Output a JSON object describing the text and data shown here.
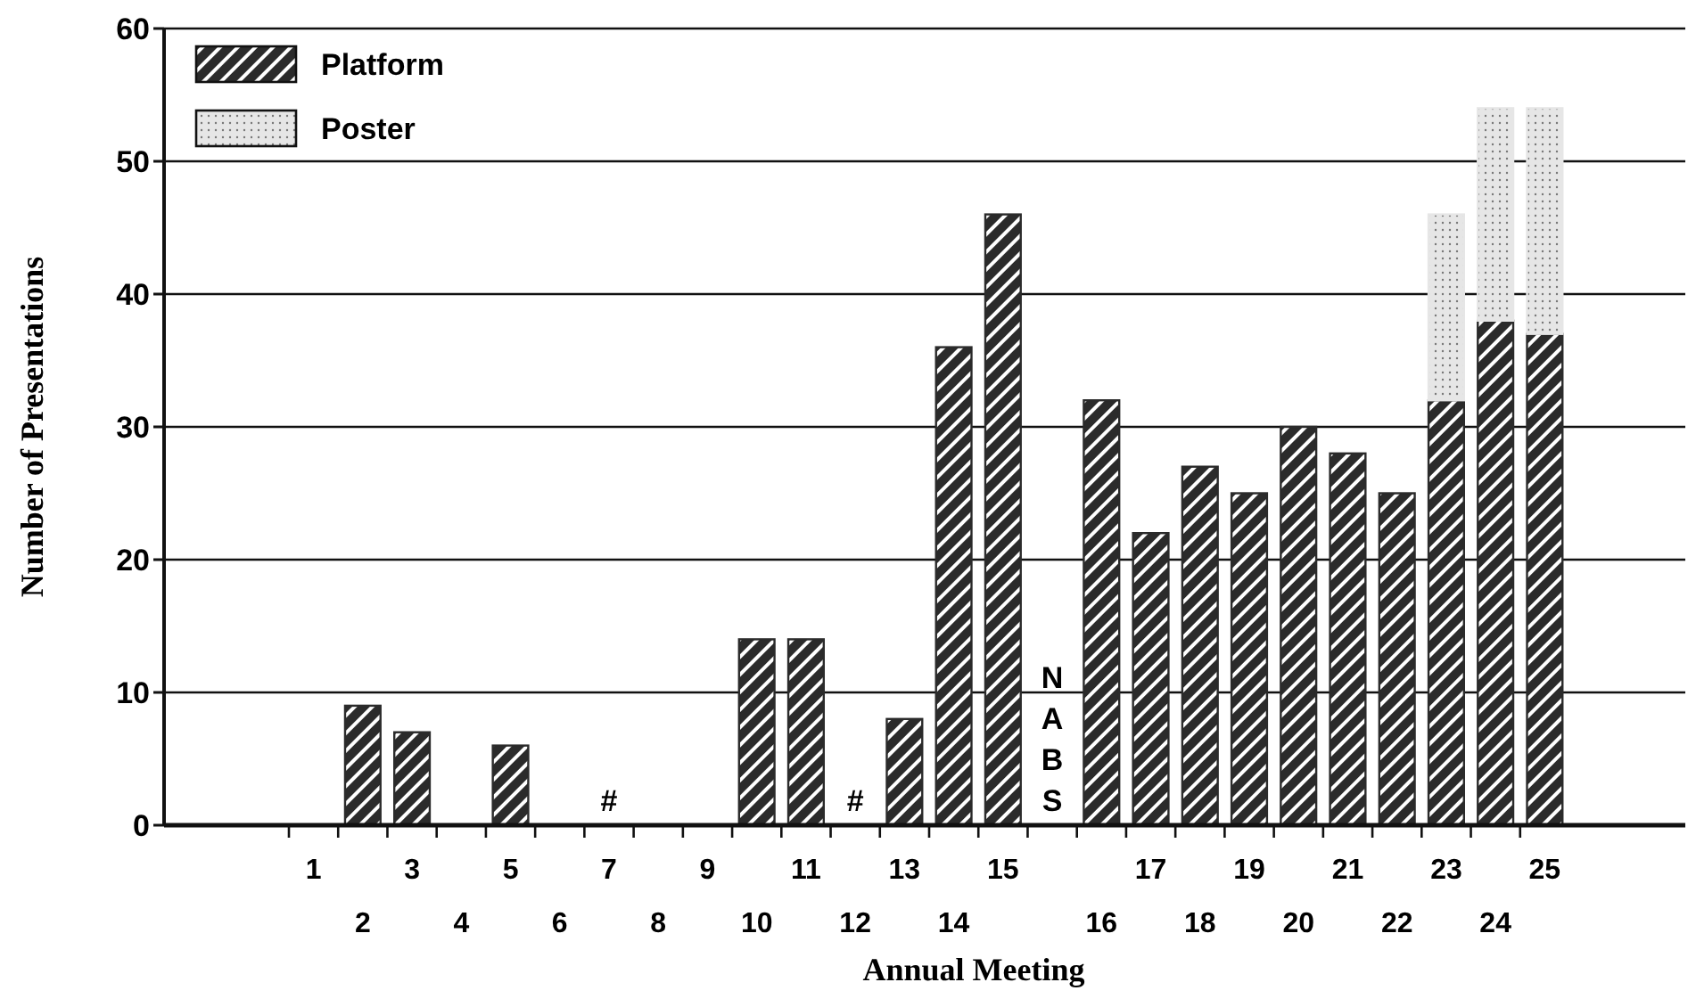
{
  "chart_data": {
    "type": "bar",
    "stacked": true,
    "xlabel": "Annual Meeting",
    "ylabel": "Number of Presentations",
    "categories": [
      "1",
      "2",
      "3",
      "4",
      "5",
      "6",
      "7",
      "8",
      "9",
      "10",
      "11",
      "12",
      "13",
      "14",
      "15",
      null,
      "16",
      "17",
      "18",
      "19",
      "20",
      "21",
      "22",
      "23",
      "24",
      "25"
    ],
    "series": [
      {
        "name": "Platform",
        "color": "#2b2b2b",
        "values": [
          null,
          9,
          7,
          null,
          6,
          null,
          null,
          null,
          null,
          14,
          14,
          null,
          8,
          36,
          46,
          null,
          32,
          22,
          27,
          25,
          30,
          28,
          25,
          32,
          38,
          37
        ]
      },
      {
        "name": "Poster",
        "color": "#e6e6e6",
        "values": [
          null,
          null,
          null,
          null,
          null,
          null,
          null,
          null,
          null,
          null,
          null,
          null,
          null,
          null,
          null,
          null,
          null,
          null,
          null,
          null,
          null,
          null,
          null,
          14,
          16,
          17
        ]
      }
    ],
    "ylim": [
      0,
      60
    ],
    "yticks": [
      0,
      10,
      20,
      30,
      40,
      50,
      60
    ],
    "grid": "y",
    "legend": "top left",
    "annotations": [
      "#",
      "#",
      "NABS"
    ]
  }
}
